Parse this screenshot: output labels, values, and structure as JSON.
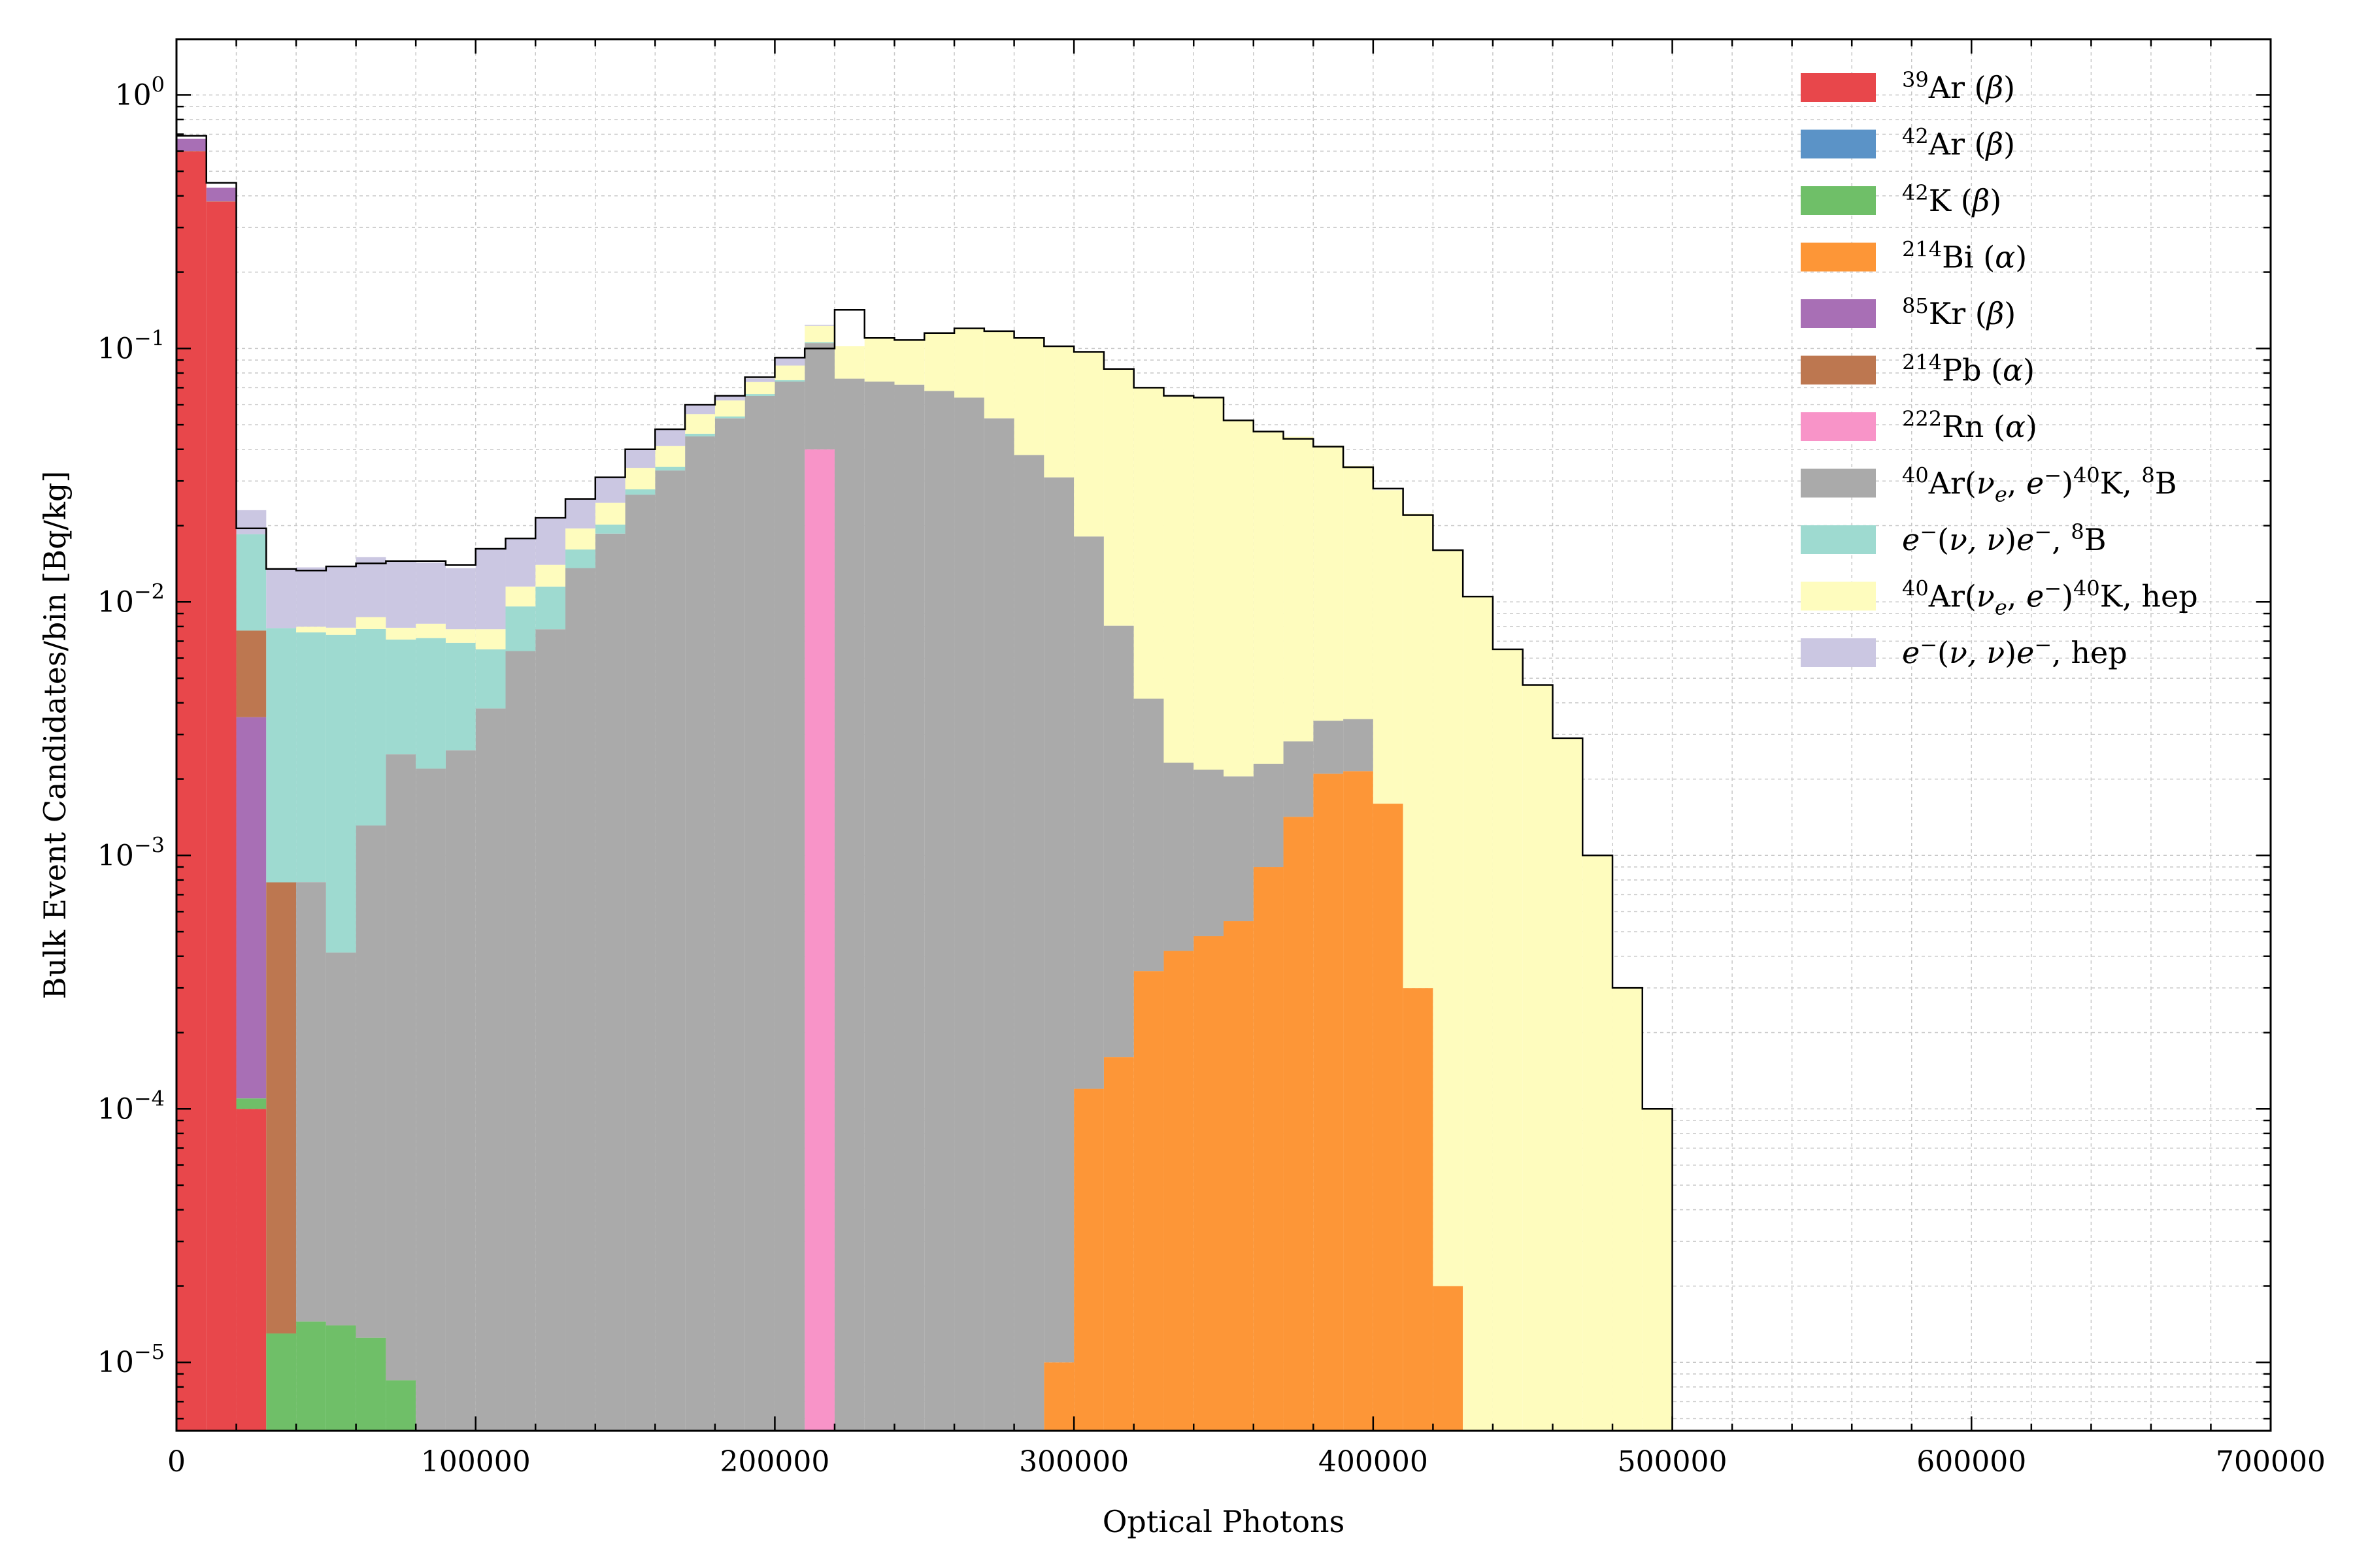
{
  "chart_data": {
    "type": "histogram-stacked",
    "xlabel": "Optical Photons",
    "ylabel": "Bulk Event Candidates/bin [Bq/kg]",
    "x_ticks": [
      "0",
      "100000",
      "200000",
      "300000",
      "400000",
      "500000",
      "600000",
      "700000"
    ],
    "y_ticks": [
      {
        "base": "10",
        "exp": "0"
      },
      {
        "base": "10",
        "exp": "−1"
      },
      {
        "base": "10",
        "exp": "−2"
      },
      {
        "base": "10",
        "exp": "−3"
      },
      {
        "base": "10",
        "exp": "−4"
      },
      {
        "base": "10",
        "exp": "−5"
      }
    ],
    "xlim": [
      0,
      700000
    ],
    "ylog10lim": [
      -5.27,
      0.22
    ],
    "yscale": "log",
    "bin_width": 10000,
    "grid": true,
    "legend_position": "upper-right",
    "bins_start": [
      0,
      10000,
      20000,
      30000,
      40000,
      50000,
      60000,
      70000,
      80000,
      90000,
      100000,
      110000,
      120000,
      130000,
      140000,
      150000,
      160000,
      170000,
      180000,
      190000,
      200000,
      210000,
      220000,
      230000,
      240000,
      250000,
      260000,
      270000,
      280000,
      290000,
      300000,
      310000,
      320000,
      330000,
      340000,
      350000,
      360000,
      370000,
      380000,
      390000,
      400000,
      410000,
      420000,
      430000,
      440000,
      450000,
      460000,
      470000,
      480000,
      490000
    ],
    "stack_totals": [
      0.69,
      0.45,
      0.0195,
      0.0135,
      0.0133,
      0.0138,
      0.0142,
      0.0145,
      0.0145,
      0.014,
      0.0162,
      0.0178,
      0.0215,
      0.0255,
      0.031,
      0.04,
      0.048,
      0.06,
      0.065,
      0.077,
      0.092,
      0.1,
      0.142,
      0.11,
      0.108,
      0.115,
      0.12,
      0.117,
      0.11,
      0.102,
      0.097,
      0.083,
      0.07,
      0.065,
      0.064,
      0.052,
      0.047,
      0.044,
      0.041,
      0.034,
      0.028,
      0.022,
      0.016,
      0.0105,
      0.0065,
      0.0047,
      0.0029,
      0.001,
      0.0003,
      0.0001
    ],
    "series": [
      {
        "name": "³⁹Ar (β)",
        "label_parts": [
          {
            "sup": "39"
          },
          {
            "t": "Ar ("
          },
          {
            "i": "β"
          },
          {
            "t": ")"
          }
        ],
        "color": "#e8474b",
        "values": [
          0.6,
          0.38,
          0.0001,
          0,
          0,
          0,
          0,
          0,
          0,
          0,
          0,
          0,
          0,
          0,
          0,
          0,
          0,
          0,
          0,
          0,
          0,
          0,
          0,
          0,
          0,
          0,
          0,
          0,
          0,
          0,
          0,
          0,
          0,
          0,
          0,
          0,
          0,
          0,
          0,
          0,
          0,
          0,
          0,
          0,
          0,
          0,
          0,
          0,
          0,
          0
        ]
      },
      {
        "name": "⁴²Ar (β)",
        "label_parts": [
          {
            "sup": "42"
          },
          {
            "t": "Ar ("
          },
          {
            "i": "β"
          },
          {
            "t": ")"
          }
        ],
        "color": "#5b93c7",
        "values": [
          0,
          0,
          0,
          0,
          0,
          0,
          0,
          0,
          0,
          0,
          0,
          0,
          0,
          0,
          0,
          0,
          0,
          0,
          0,
          0,
          0,
          0,
          0,
          0,
          0,
          0,
          0,
          0,
          0,
          0,
          0,
          0,
          0,
          0,
          0,
          0,
          0,
          0,
          0,
          0,
          0,
          0,
          0,
          0,
          0,
          0,
          0,
          0,
          0,
          0
        ]
      },
      {
        "name": "⁴²K (β)",
        "label_parts": [
          {
            "sup": "42"
          },
          {
            "t": "K ("
          },
          {
            "i": "β"
          },
          {
            "t": ")"
          }
        ],
        "color": "#6fbf68",
        "values": [
          0.001,
          0.0005,
          1e-05,
          1.3e-05,
          1.45e-05,
          1.4e-05,
          1.25e-05,
          8.5e-06,
          0,
          0,
          0,
          0,
          0,
          0,
          0,
          0,
          0,
          0,
          0,
          0,
          0,
          0,
          0,
          0,
          0,
          0,
          0,
          0,
          0,
          0,
          0,
          0,
          0,
          0,
          0,
          0,
          0,
          0,
          0,
          0,
          0,
          0,
          0,
          0,
          0,
          0,
          0,
          0,
          0,
          0
        ]
      },
      {
        "name": "²¹⁴Bi (α)",
        "label_parts": [
          {
            "sup": "214"
          },
          {
            "t": "Bi ("
          },
          {
            "i": "α"
          },
          {
            "t": ")"
          }
        ],
        "color": "#fd9637",
        "values": [
          0,
          0,
          0,
          0,
          0,
          0,
          0,
          0,
          0,
          0,
          0,
          0,
          0,
          0,
          0,
          0,
          0,
          0,
          0,
          0,
          0,
          0,
          0,
          0,
          0,
          0,
          0,
          0,
          0,
          1e-05,
          0.00012,
          0.00016,
          0.00035,
          0.00042,
          0.00048,
          0.00055,
          0.0009,
          0.00142,
          0.0021,
          0.00215,
          0.0016,
          0.0003,
          2e-05,
          0,
          0,
          0,
          0,
          0,
          0,
          0
        ]
      },
      {
        "name": "⁸⁵Kr (β)",
        "label_parts": [
          {
            "sup": "85"
          },
          {
            "t": "Kr ("
          },
          {
            "i": "β"
          },
          {
            "t": ")"
          }
        ],
        "color": "#a86fb5",
        "values": [
          0.07,
          0.05,
          0.0034,
          0,
          0,
          0,
          0,
          0,
          0,
          0,
          0,
          0,
          0,
          0,
          0,
          0,
          0,
          0,
          0,
          0,
          0,
          0,
          0,
          0,
          0,
          0,
          0,
          0,
          0,
          0,
          0,
          0,
          0,
          0,
          0,
          0,
          0,
          0,
          0,
          0,
          0,
          0,
          0,
          0,
          0,
          0,
          0,
          0,
          0,
          0
        ]
      },
      {
        "name": "²¹⁴Pb (α)",
        "label_parts": [
          {
            "sup": "214"
          },
          {
            "t": "Pb ("
          },
          {
            "i": "α"
          },
          {
            "t": ")"
          }
        ],
        "color": "#bd7750",
        "values": [
          0,
          0,
          0.0042,
          0.00077,
          0,
          0,
          0,
          0,
          0,
          0,
          0,
          0,
          0,
          0,
          0,
          0,
          0,
          0,
          0,
          0,
          0,
          0,
          0,
          0,
          0,
          0,
          0,
          0,
          0,
          0,
          0,
          0,
          0,
          0,
          0,
          0,
          0,
          0,
          0,
          0,
          0,
          0,
          0,
          0,
          0,
          0,
          0,
          0,
          0,
          0
        ]
      },
      {
        "name": "²²²Rn (α)",
        "label_parts": [
          {
            "sup": "222"
          },
          {
            "t": "Rn ("
          },
          {
            "i": "α"
          },
          {
            "t": ")"
          }
        ],
        "color": "#f894c8",
        "values": [
          0,
          0,
          0,
          0,
          0,
          0,
          0,
          0,
          0,
          0,
          0,
          0,
          0,
          0,
          0,
          0,
          0,
          0,
          0,
          0,
          0,
          0.04,
          0,
          0,
          0,
          0,
          0,
          0,
          0,
          0,
          0,
          0,
          0,
          0,
          0,
          0,
          0,
          0,
          0,
          0,
          0,
          0,
          0,
          0,
          0,
          0,
          0,
          0,
          0,
          0
        ]
      },
      {
        "name": "⁴⁰Ar(νe, e⁻)⁴⁰K, ⁸B",
        "label_parts": [
          {
            "sup": "40"
          },
          {
            "t": "Ar("
          },
          {
            "i": "ν"
          },
          {
            "sub": "e"
          },
          {
            "t": ", "
          },
          {
            "i": "e"
          },
          {
            "sup": "−"
          },
          {
            "t": ")"
          },
          {
            "sup": "40"
          },
          {
            "t": "K, "
          },
          {
            "sup": "8"
          },
          {
            "t": "B"
          }
        ],
        "color": "#aaaaaa",
        "values": [
          0,
          0,
          0,
          0,
          0.00077,
          0.0004,
          0.0013,
          0.0025,
          0.0022,
          0.0026,
          0.0038,
          0.0064,
          0.0078,
          0.0136,
          0.0186,
          0.0265,
          0.033,
          0.045,
          0.053,
          0.065,
          0.074,
          0.065,
          0.076,
          0.074,
          0.072,
          0.068,
          0.064,
          0.053,
          0.038,
          0.031,
          0.018,
          0.0079,
          0.0038,
          0.0019,
          0.0017,
          0.0015,
          0.0014,
          0.0014,
          0.0013,
          0.0013,
          0,
          0,
          0,
          0,
          0,
          0,
          0,
          0,
          0,
          0
        ]
      },
      {
        "name": "e⁻(ν, ν)e⁻, ⁸B",
        "label_parts": [
          {
            "i": "e"
          },
          {
            "sup": "−"
          },
          {
            "t": "("
          },
          {
            "i": "ν, ν"
          },
          {
            "t": ")"
          },
          {
            "i": "e"
          },
          {
            "sup": "−"
          },
          {
            "t": ", "
          },
          {
            "sup": "8"
          },
          {
            "t": "B"
          }
        ],
        "color": "#9edad0",
        "values": [
          0,
          0,
          0.0108,
          0.0071,
          0.0068,
          0.007,
          0.0065,
          0.0046,
          0.005,
          0.0043,
          0.0027,
          0.0032,
          0.0037,
          0.0025,
          0.0016,
          0.0013,
          0.0011,
          0.0011,
          0.0009,
          0.0011,
          0.001,
          0.0008,
          0,
          0,
          0,
          0,
          0,
          0,
          0,
          0,
          0,
          0,
          0,
          0,
          0,
          0,
          0,
          0,
          0,
          0,
          0,
          0,
          0,
          0,
          0,
          0,
          0,
          0,
          0,
          0
        ]
      },
      {
        "name": "⁴⁰Ar(νe, e⁻)⁴⁰K, hep",
        "label_parts": [
          {
            "sup": "40"
          },
          {
            "t": "Ar("
          },
          {
            "i": "ν"
          },
          {
            "sub": "e"
          },
          {
            "t": ", "
          },
          {
            "i": "e"
          },
          {
            "sup": "−"
          },
          {
            "t": ")"
          },
          {
            "sup": "40"
          },
          {
            "t": "K, hep"
          }
        ],
        "color": "#fefcbe",
        "values": [
          0,
          0,
          0,
          0,
          0.0004,
          0.0005,
          0.0009,
          0.0008,
          0.001,
          0.0009,
          0.0013,
          0.0019,
          0.0025,
          0.0034,
          0.0044,
          0.006,
          0.0071,
          0.0089,
          0.0085,
          0.0076,
          0.0106,
          0.017,
          0.026,
          0.036,
          0.036,
          0.047,
          0.056,
          0.064,
          0.072,
          0.071,
          0.079,
          0.075,
          0.066,
          0.063,
          0.062,
          0.05,
          0.045,
          0.042,
          0.038,
          0.031,
          0.026,
          0.022,
          0.016,
          0.0105,
          0.0065,
          0.0047,
          0.0029,
          0.001,
          0.0003,
          0.0001
        ]
      },
      {
        "name": "e⁻(ν, ν)e⁻, hep",
        "label_parts": [
          {
            "i": "e"
          },
          {
            "sup": "−"
          },
          {
            "t": "("
          },
          {
            "i": "ν, ν"
          },
          {
            "t": ")"
          },
          {
            "i": "e"
          },
          {
            "sup": "−"
          },
          {
            "t": ", hep"
          }
        ],
        "color": "#cbc7e2",
        "values": [
          0,
          0,
          0.0045,
          0.0057,
          0.0057,
          0.006,
          0.0063,
          0.0066,
          0.0061,
          0.0058,
          0.0084,
          0.0063,
          0.0075,
          0.006,
          0.0064,
          0.0063,
          0.0068,
          0.005,
          0.0025,
          0.0023,
          0.0064,
          0.0012,
          0,
          0,
          0,
          0,
          0,
          0,
          0,
          0,
          0,
          0,
          0,
          0,
          0,
          0,
          0,
          0,
          0,
          0,
          0,
          0,
          0,
          0,
          0,
          0,
          0,
          0,
          0,
          0
        ]
      }
    ]
  }
}
